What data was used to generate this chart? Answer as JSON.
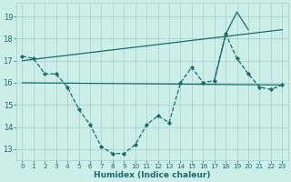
{
  "xlabel": "Humidex (Indice chaleur)",
  "bg_color": "#cceee8",
  "grid_color": "#aad4ce",
  "line_color": "#1a6b6b",
  "xlim": [
    -0.5,
    23.5
  ],
  "ylim": [
    12.5,
    19.6
  ],
  "xticks": [
    0,
    1,
    2,
    3,
    4,
    5,
    6,
    7,
    8,
    9,
    10,
    11,
    12,
    13,
    14,
    15,
    16,
    17,
    18,
    19,
    20,
    21,
    22,
    23
  ],
  "yticks": [
    13,
    14,
    15,
    16,
    17,
    18,
    19
  ],
  "line1_x": [
    0,
    1,
    2,
    3,
    4,
    5,
    6,
    7,
    8,
    9,
    10,
    11,
    12,
    13,
    14,
    15,
    16,
    17,
    18,
    19,
    20,
    21,
    22,
    23
  ],
  "line1_y": [
    17.2,
    17.1,
    16.4,
    16.4,
    15.8,
    14.8,
    14.1,
    13.1,
    12.8,
    12.8,
    13.2,
    14.1,
    14.5,
    14.2,
    16.0,
    16.7,
    16.0,
    16.1,
    18.2,
    17.1,
    16.4,
    15.8,
    15.7,
    15.9
  ],
  "line2_x": [
    0,
    23
  ],
  "line2_y": [
    16.0,
    15.9
  ],
  "line3_x": [
    0,
    23
  ],
  "line3_y": [
    17.0,
    18.4
  ],
  "line4_x": [
    17,
    18,
    19,
    20
  ],
  "line4_y": [
    16.1,
    18.2,
    19.2,
    18.4
  ]
}
